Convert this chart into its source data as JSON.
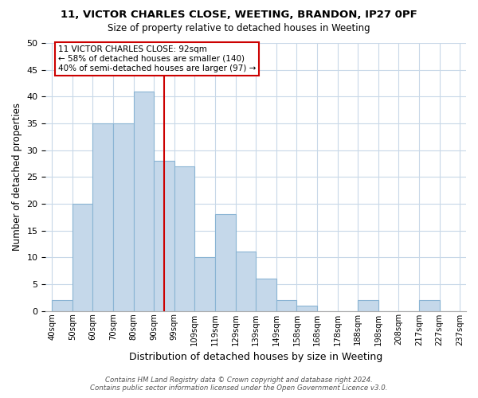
{
  "title": "11, VICTOR CHARLES CLOSE, WEETING, BRANDON, IP27 0PF",
  "subtitle": "Size of property relative to detached houses in Weeting",
  "xlabel": "Distribution of detached houses by size in Weeting",
  "ylabel": "Number of detached properties",
  "bar_labels": [
    "40sqm",
    "50sqm",
    "60sqm",
    "70sqm",
    "80sqm",
    "90sqm",
    "99sqm",
    "109sqm",
    "119sqm",
    "129sqm",
    "139sqm",
    "149sqm",
    "158sqm",
    "168sqm",
    "178sqm",
    "188sqm",
    "198sqm",
    "208sqm",
    "217sqm",
    "227sqm",
    "237sqm"
  ],
  "bar_values": [
    2,
    20,
    35,
    35,
    41,
    28,
    27,
    10,
    18,
    11,
    6,
    2,
    1,
    0,
    0,
    2,
    0,
    0,
    2,
    0
  ],
  "bar_color": "#c5d8ea",
  "bar_edge_color": "#8ab4d4",
  "vline_color": "#cc0000",
  "vline_pos": 5.5,
  "annotation_title": "11 VICTOR CHARLES CLOSE: 92sqm",
  "annotation_line1": "← 58% of detached houses are smaller (140)",
  "annotation_line2": "40% of semi-detached houses are larger (97) →",
  "ylim": [
    0,
    50
  ],
  "yticks": [
    0,
    5,
    10,
    15,
    20,
    25,
    30,
    35,
    40,
    45,
    50
  ],
  "footer_line1": "Contains HM Land Registry data © Crown copyright and database right 2024.",
  "footer_line2": "Contains public sector information licensed under the Open Government Licence v3.0.",
  "bg_color": "#ffffff",
  "grid_color": "#c8d8e8"
}
